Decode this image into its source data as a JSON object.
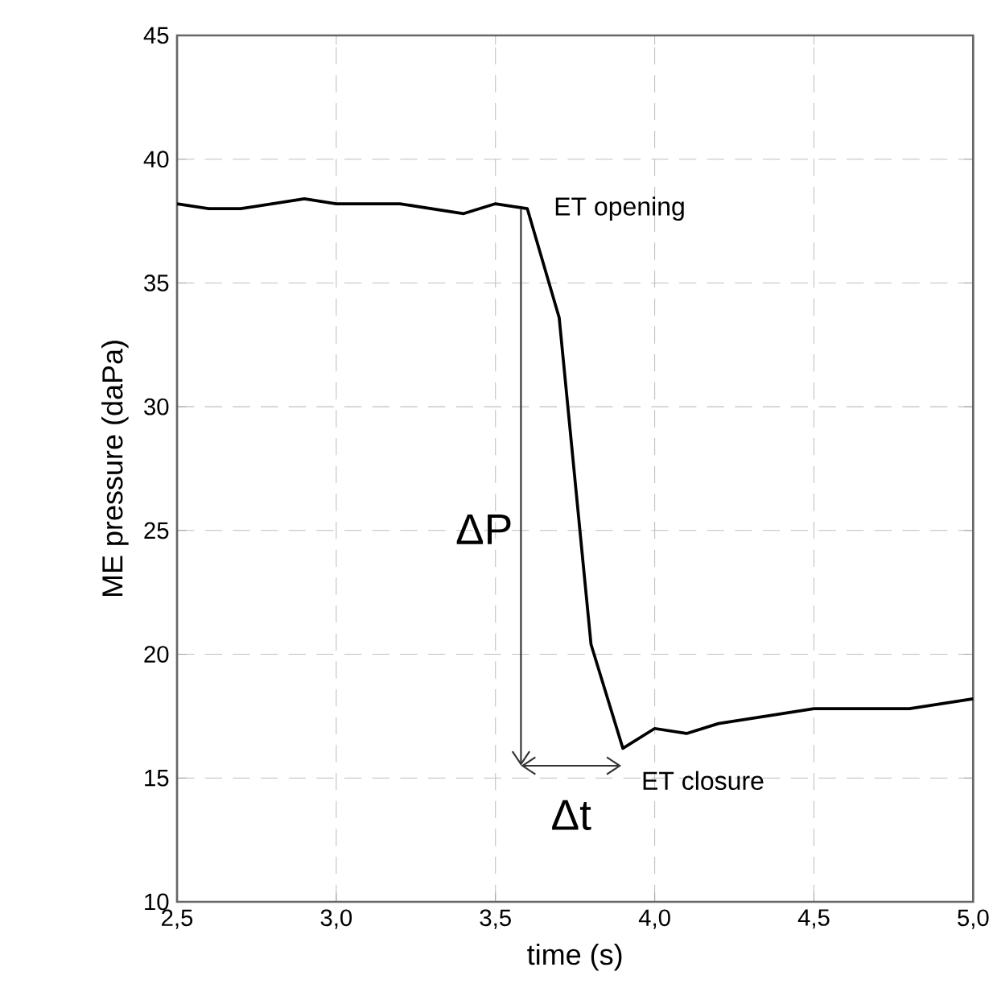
{
  "chart_data": {
    "type": "line",
    "xlabel": "time (s)",
    "ylabel": "ME pressure (daPa)",
    "x": [
      2.5,
      2.6,
      2.7,
      2.9,
      3.0,
      3.2,
      3.4,
      3.5,
      3.6,
      3.7,
      3.8,
      3.9,
      4.0,
      4.1,
      4.2,
      4.5,
      4.8,
      5.0
    ],
    "series": [
      {
        "color": "#000000",
        "values": [
          38.2,
          38.0,
          38.0,
          38.4,
          38.2,
          38.2,
          37.8,
          38.2,
          38.0,
          33.6,
          20.4,
          16.2,
          17.0,
          16.8,
          17.2,
          17.8,
          17.8,
          18.2
        ]
      }
    ],
    "xlim": [
      2.5,
      5.0
    ],
    "xticks": [
      {
        "value": 2.5,
        "label": "2,5"
      },
      {
        "value": 3.0,
        "label": "3,0"
      },
      {
        "value": 3.5,
        "label": "3,5"
      },
      {
        "value": 4.0,
        "label": "4,0"
      },
      {
        "value": 4.5,
        "label": "4,5"
      },
      {
        "value": 5.0,
        "label": "5,0"
      }
    ],
    "ylim": [
      10,
      45
    ],
    "yticks": [
      10,
      15,
      20,
      25,
      30,
      35,
      40,
      45
    ],
    "grid": true,
    "line_style": "solid",
    "marker": "none",
    "annotations": [
      "ET opening",
      "ΔP",
      "Δt",
      "ET closure"
    ]
  }
}
